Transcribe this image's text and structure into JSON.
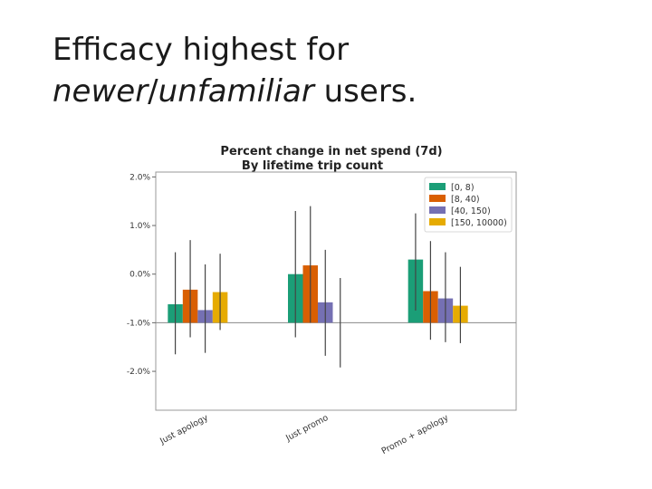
{
  "slide": {
    "title_line1": "Efficacy highest for",
    "title_em1": "newer",
    "title_sep": "/",
    "title_em2": "unfamiliar",
    "title_tail": " users."
  },
  "chart_data": {
    "type": "bar",
    "title": "Percent change in net spend (7d)",
    "subtitle": "By lifetime trip count",
    "categories": [
      "Just apology",
      "Just promo",
      "Promo + apology"
    ],
    "ylim": [
      -2.8,
      2.1
    ],
    "yticks": [
      2.0,
      1.0,
      0.0,
      -1.0,
      -2.0
    ],
    "ytick_labels": [
      "2.0%",
      "1.0%",
      "0.0%",
      "-1.0%",
      "-2.0%"
    ],
    "baseline": -1.0,
    "grid": false,
    "legend_position": "top-right",
    "series": [
      {
        "name": "[0, 8)",
        "color": "#1b9e77",
        "values": [
          -0.62,
          0.0,
          0.3
        ],
        "err_low": [
          -1.65,
          -1.3,
          -0.75
        ],
        "err_high": [
          0.45,
          1.3,
          1.25
        ]
      },
      {
        "name": "[8, 40)",
        "color": "#d95f02",
        "values": [
          -0.32,
          0.18,
          -0.35
        ],
        "err_low": [
          -1.3,
          -1.0,
          -1.35
        ],
        "err_high": [
          0.7,
          1.4,
          0.68
        ]
      },
      {
        "name": "[40, 150)",
        "color": "#7570b3",
        "values": [
          -0.74,
          -0.58,
          -0.5
        ],
        "err_low": [
          -1.62,
          -1.68,
          -1.4
        ],
        "err_high": [
          0.2,
          0.5,
          0.45
        ]
      },
      {
        "name": "[150, 10000)",
        "color": "#e6ab02",
        "values": [
          -0.37,
          null,
          -0.65
        ],
        "err_low": [
          -1.15,
          -1.92,
          -1.42
        ],
        "err_high": [
          0.42,
          -0.08,
          0.15
        ]
      }
    ]
  }
}
